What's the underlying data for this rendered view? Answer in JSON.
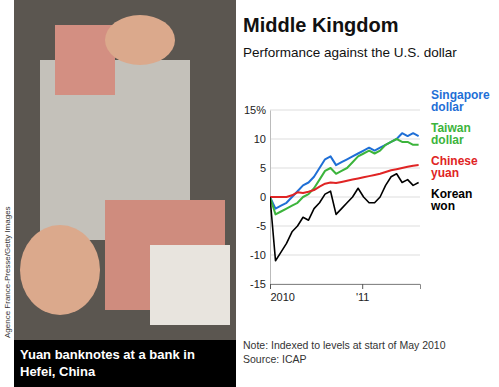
{
  "chart_data": {
    "type": "line",
    "title": "Middle Kingdom",
    "subtitle": "Performance against the U.S. dollar",
    "note": "Note: Indexed to levels at start of May 2010",
    "source": "Source: ICAP",
    "x": [
      2010.33,
      2010.37,
      2010.41,
      2010.45,
      2010.49,
      2010.53,
      2010.57,
      2010.61,
      2010.65,
      2010.69,
      2010.73,
      2010.77,
      2010.81,
      2010.85,
      2010.89,
      2010.93,
      2010.97,
      2011.01,
      2011.05,
      2011.09,
      2011.13,
      2011.17,
      2011.21,
      2011.25,
      2011.29,
      2011.33,
      2011.37,
      2011.41
    ],
    "xlim": [
      2010.33,
      2011.42
    ],
    "xticks": [
      {
        "value": 2010.33,
        "label": "2010"
      },
      {
        "value": 2011,
        "label": "'11"
      }
    ],
    "ylim": [
      -15,
      15
    ],
    "yticks": [
      {
        "value": 15,
        "label": "15%"
      },
      10,
      5,
      0,
      -5,
      -10,
      -15
    ],
    "grid": true,
    "legend": "right",
    "series": [
      {
        "name": "Singapore dollar",
        "color": "#1f6fd6",
        "values": [
          0,
          -2,
          -1.5,
          -1,
          0,
          1,
          2,
          2.5,
          3.5,
          5,
          6.5,
          7,
          5.5,
          6,
          6.5,
          7,
          7.5,
          8,
          8.5,
          8,
          8.5,
          9,
          9.5,
          10,
          11,
          10.5,
          11,
          10.5
        ]
      },
      {
        "name": "Taiwan dollar",
        "color": "#3cb43c",
        "values": [
          0,
          -3,
          -2.5,
          -2,
          -1.5,
          -1,
          0,
          0.5,
          1.5,
          3,
          4.5,
          5,
          4,
          4.5,
          5,
          6,
          7,
          7.5,
          8,
          7.5,
          8,
          9,
          9.5,
          10,
          9.5,
          9.5,
          9,
          9
        ]
      },
      {
        "name": "Chinese yuan",
        "color": "#e02424",
        "values": [
          0,
          0,
          0,
          0,
          0.3,
          0.8,
          0.7,
          0.9,
          1.2,
          1.8,
          2.3,
          2.5,
          2.4,
          2.6,
          2.8,
          3,
          3.2,
          3.4,
          3.6,
          3.8,
          4,
          4.3,
          4.6,
          4.8,
          5,
          5.2,
          5.4,
          5.5
        ]
      },
      {
        "name": "Korean won",
        "color": "#000000",
        "values": [
          0,
          -11,
          -9.5,
          -8,
          -6,
          -5,
          -3.5,
          -4,
          -2,
          -1,
          0.5,
          1,
          -3,
          -2,
          -1,
          0,
          1.5,
          0,
          -1,
          -1,
          0,
          2,
          3.5,
          4,
          2.5,
          3,
          2,
          2.5
        ]
      }
    ]
  },
  "photo": {
    "caption": [
      "Yuan banknotes at a bank in",
      "Hefei, China"
    ],
    "credit": "Agence France-Presse/Getty Images"
  }
}
